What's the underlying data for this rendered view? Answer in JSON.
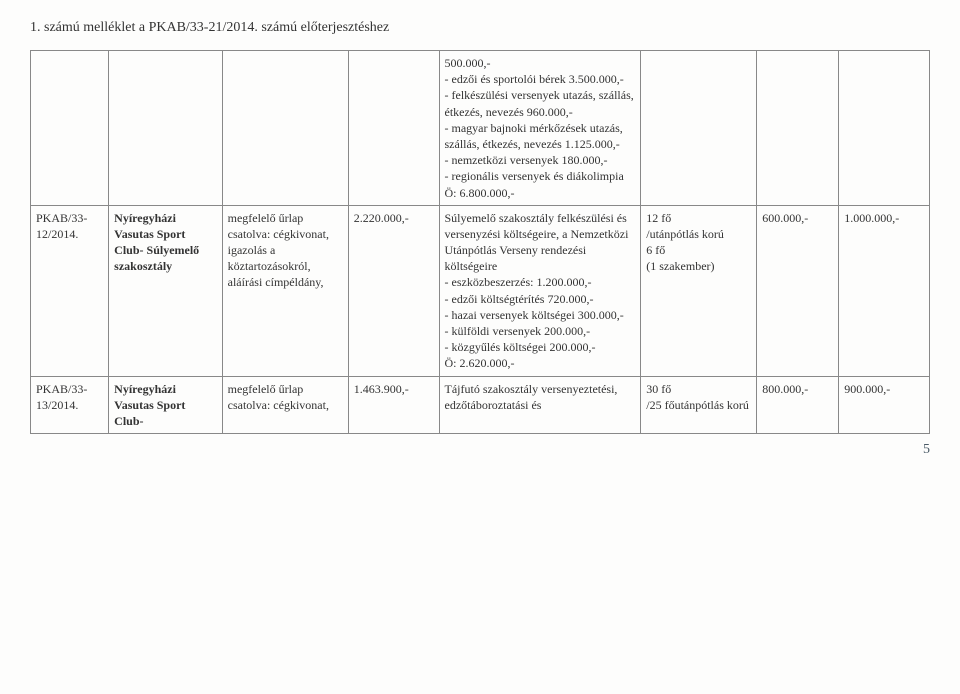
{
  "header": "1. számú melléklet a PKAB/33-21/2014. számú előterjesztéshez",
  "page_number": "5",
  "rows": [
    {
      "id": "",
      "org": "",
      "docs": "",
      "amt1": "",
      "desc": "500.000,-\n- edzői és sportolói bérek 3.500.000,-\n- felkészülési versenyek utazás, szállás, étkezés, nevezés 960.000,-\n- magyar bajnoki mérkőzések utazás, szállás, étkezés, nevezés 1.125.000,-\n- nemzetközi versenyek 180.000,-\n- regionális versenyek és diákolimpia\nÖ: 6.800.000,-",
      "ppl": "",
      "amt2": "",
      "amt3": ""
    },
    {
      "id": "PKAB/33-12/2014.",
      "org": "Nyíregyházi Vasutas Sport Club- Súlyemelő szakosztály",
      "docs": "megfelelő űrlap csatolva: cégkivonat, igazolás a köztartozásokról, aláírási címpéldány,",
      "amt1": "2.220.000,-",
      "desc": "Súlyemelő szakosztály felkészülési és versenyzési költségeire, a Nemzetközi Utánpótlás Verseny rendezési költségeire\n- eszközbeszerzés: 1.200.000,-\n- edzői költségtérítés 720.000,-\n- hazai versenyek költségei 300.000,-\n- külföldi versenyek 200.000,-\n- közgyűlés költségei 200.000,-\nÖ: 2.620.000,-",
      "ppl": "12 fő\n/utánpótlás korú\n6 fő\n(1 szakember)",
      "amt2": "600.000,-",
      "amt3": "1.000.000,-"
    },
    {
      "id": "PKAB/33-13/2014.",
      "org": "Nyíregyházi Vasutas Sport Club-",
      "docs": "megfelelő űrlap csatolva: cégkivonat,",
      "amt1": "1.463.900,-",
      "desc": "Tájfutó szakosztály versenyeztetési, edzőtáboroztatási és",
      "ppl": "30 fő\n/25 főutánpótlás korú",
      "amt2": "800.000,-",
      "amt3": "900.000,-"
    }
  ]
}
